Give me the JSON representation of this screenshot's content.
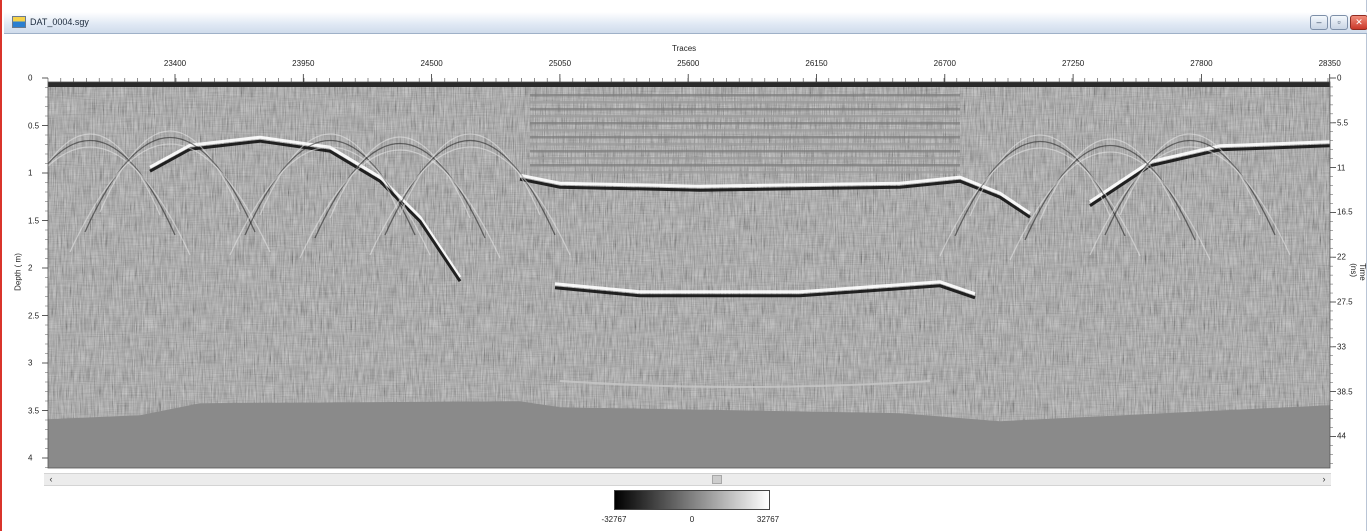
{
  "window": {
    "title": "DAT_0004.sgy",
    "buttons": {
      "minimize": "–",
      "maximize": "▫",
      "close": "✕"
    }
  },
  "chart_data": {
    "type": "heatmap",
    "description_type": "GPR radargram",
    "x_axis": {
      "title": "Traces",
      "ticks": [
        "23400",
        "23950",
        "24500",
        "25050",
        "25600",
        "26150",
        "26700",
        "27250",
        "27800",
        "28350"
      ]
    },
    "y_axis_left": {
      "title": "Depth ( m)",
      "ticks": [
        "0",
        "0.5",
        "1",
        "1.5",
        "2",
        "2.5",
        "3",
        "3.5",
        "4"
      ],
      "ylim": [
        0,
        4.0
      ]
    },
    "y_axis_right": {
      "title": "Time (ns)",
      "ticks": [
        "0",
        "5.5",
        "11",
        "16.5",
        "22",
        "27.5",
        "33",
        "38.5",
        "44"
      ],
      "ylim": [
        0,
        44
      ]
    },
    "colormap": "gray",
    "colorbar": {
      "min": "-32767",
      "mid": "0",
      "max": "32767"
    },
    "features": {
      "channel_reflector_top_depth_m": 1.1,
      "channel_reflector_bottom_depth_m": 2.15,
      "deep_reflector_depth_m": 3.25,
      "bank_reflector_left_depth_m": 0.6,
      "bank_reflector_right_depth_m": 0.65,
      "signal_attenuation_floor_depth_m": 3.6
    },
    "grid": false
  },
  "scrollbar": {
    "left_arrow": "‹",
    "right_arrow": "›"
  }
}
